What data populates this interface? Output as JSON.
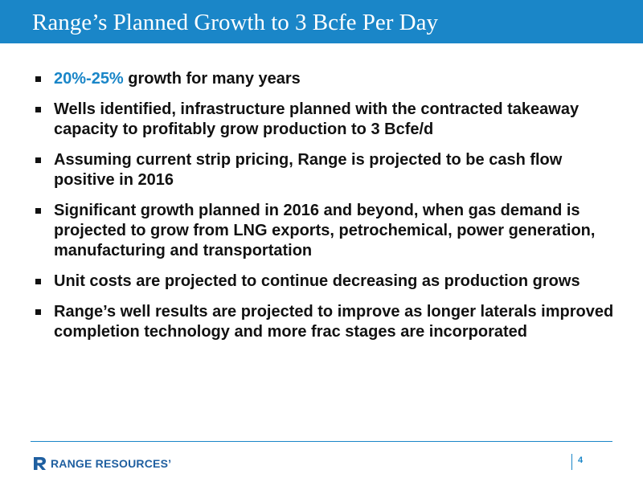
{
  "slide": {
    "title": "Range’s Planned Growth to 3 Bcfe Per Day",
    "bullets": [
      {
        "highlight": "20%-25%",
        "text": " growth for many years"
      },
      {
        "highlight": "",
        "text": "Wells identified, infrastructure planned with the contracted takeaway capacity to profitably grow production to 3 Bcfe/d"
      },
      {
        "highlight": "",
        "text": "Assuming current strip pricing, Range is projected to be cash flow positive in 2016"
      },
      {
        "highlight": "",
        "text": "Significant growth planned in 2016 and beyond, when gas demand is projected to grow from LNG exports, petrochemical, power generation, manufacturing and transportation"
      },
      {
        "highlight": "",
        "text": "Unit costs are projected to continue decreasing as production grows"
      },
      {
        "highlight": "",
        "text": "Range’s well results are projected to improve as longer laterals improved completion technology and more frac stages are incorporated"
      }
    ]
  },
  "footer": {
    "logo_text": "RANGE RESOURCES",
    "logo_mark": "’",
    "page_number": "4"
  },
  "colors": {
    "accent": "#1a86c8",
    "text": "#111111",
    "logo": "#1f5fa0"
  },
  "icons": {
    "bullet": "square-bullet-icon",
    "logo": "range-resources-logo-icon"
  }
}
